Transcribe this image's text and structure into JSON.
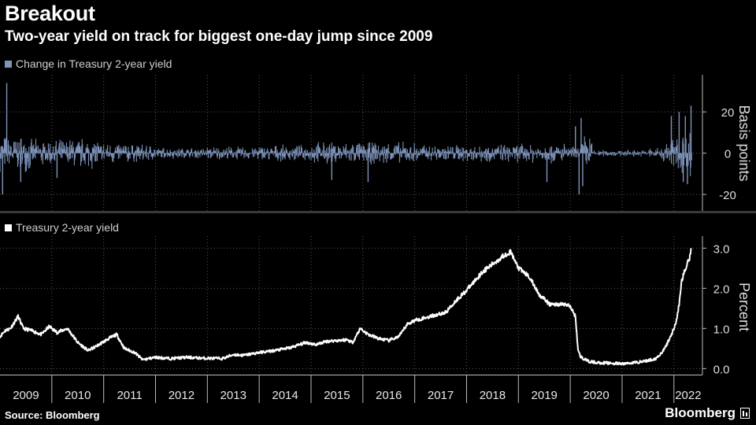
{
  "title": "Breakout",
  "subtitle": "Two-year yield on track for biggest one-day jump since 2009",
  "source": "Source: Bloomberg",
  "brand": "Bloomberg",
  "colors": {
    "bars": "#7e94bb",
    "line": "#ffffff",
    "background": "#000000",
    "grid": "#5a5a5a"
  },
  "chart_data": [
    {
      "type": "bar",
      "title": "Change in Treasury 2-year yield",
      "ylabel": "Basis points",
      "ylim": [
        -28,
        38
      ],
      "yticks": [
        -20,
        0,
        20
      ],
      "ytick_labels": [
        "-20",
        "0",
        "20"
      ],
      "x_range": [
        2009.0,
        2022.35
      ],
      "volatility_regimes": [
        {
          "start": 2009.0,
          "amp": 8
        },
        {
          "start": 2009.6,
          "amp": 6
        },
        {
          "start": 2010.3,
          "amp": 7
        },
        {
          "start": 2010.9,
          "amp": 5
        },
        {
          "start": 2011.5,
          "amp": 4
        },
        {
          "start": 2012.0,
          "amp": 2.5
        },
        {
          "start": 2013.0,
          "amp": 3
        },
        {
          "start": 2014.0,
          "amp": 3.5
        },
        {
          "start": 2015.0,
          "amp": 5
        },
        {
          "start": 2016.0,
          "amp": 5
        },
        {
          "start": 2017.0,
          "amp": 4
        },
        {
          "start": 2018.0,
          "amp": 4
        },
        {
          "start": 2019.0,
          "amp": 4.5
        },
        {
          "start": 2019.9,
          "amp": 3
        },
        {
          "start": 2020.2,
          "amp": 8
        },
        {
          "start": 2020.45,
          "amp": 1.5
        },
        {
          "start": 2021.5,
          "amp": 2.5
        },
        {
          "start": 2021.75,
          "amp": 5
        },
        {
          "start": 2021.95,
          "amp": 9
        },
        {
          "start": 2022.15,
          "amp": 11
        }
      ],
      "notable_moves": [
        {
          "x": 2009.13,
          "value": 34
        },
        {
          "x": 2009.05,
          "value": -20
        },
        {
          "x": 2009.4,
          "value": -14
        },
        {
          "x": 2010.1,
          "value": -12
        },
        {
          "x": 2015.4,
          "value": -13
        },
        {
          "x": 2016.1,
          "value": -14
        },
        {
          "x": 2019.55,
          "value": -14
        },
        {
          "x": 2020.1,
          "value": 13
        },
        {
          "x": 2020.17,
          "value": -20
        },
        {
          "x": 2020.21,
          "value": 17
        },
        {
          "x": 2020.24,
          "value": -16
        },
        {
          "x": 2021.95,
          "value": 18
        },
        {
          "x": 2022.1,
          "value": 20
        },
        {
          "x": 2022.18,
          "value": -14
        },
        {
          "x": 2022.22,
          "value": 18
        },
        {
          "x": 2022.26,
          "value": -15
        },
        {
          "x": 2022.33,
          "value": 23
        }
      ]
    },
    {
      "type": "line",
      "title": "Treasury 2-year yield",
      "ylabel": "Percent",
      "ylim": [
        -0.15,
        3.3
      ],
      "yticks": [
        0,
        1,
        2,
        3
      ],
      "ytick_labels": [
        "0.0",
        "1.0",
        "2.0",
        "3.0"
      ],
      "xticks": [
        "2009",
        "2010",
        "2011",
        "2012",
        "2013",
        "2014",
        "2015",
        "2016",
        "2017",
        "2018",
        "2019",
        "2020",
        "2021",
        "2022"
      ],
      "x": [
        2009.0,
        2009.1,
        2009.2,
        2009.35,
        2009.45,
        2009.6,
        2009.8,
        2009.95,
        2010.1,
        2010.3,
        2010.5,
        2010.7,
        2010.85,
        2011.1,
        2011.25,
        2011.4,
        2011.6,
        2011.75,
        2012.0,
        2012.3,
        2012.6,
        2012.9,
        2013.3,
        2013.5,
        2013.7,
        2014.0,
        2014.3,
        2014.6,
        2014.9,
        2015.1,
        2015.3,
        2015.5,
        2015.7,
        2015.8,
        2015.95,
        2016.1,
        2016.3,
        2016.5,
        2016.7,
        2016.85,
        2017.0,
        2017.3,
        2017.6,
        2017.8,
        2018.0,
        2018.3,
        2018.6,
        2018.75,
        2018.85,
        2019.0,
        2019.2,
        2019.4,
        2019.6,
        2019.75,
        2019.9,
        2020.0,
        2020.1,
        2020.15,
        2020.2,
        2020.25,
        2020.35,
        2020.5,
        2020.7,
        2021.0,
        2021.3,
        2021.5,
        2021.65,
        2021.8,
        2021.9,
        2022.0,
        2022.05,
        2022.1,
        2022.15,
        2022.2,
        2022.25,
        2022.3,
        2022.33
      ],
      "values": [
        0.8,
        0.95,
        1.0,
        1.3,
        1.0,
        0.95,
        0.85,
        1.05,
        0.9,
        1.0,
        0.65,
        0.45,
        0.55,
        0.75,
        0.85,
        0.5,
        0.4,
        0.22,
        0.28,
        0.25,
        0.28,
        0.26,
        0.25,
        0.35,
        0.33,
        0.4,
        0.45,
        0.52,
        0.65,
        0.6,
        0.68,
        0.7,
        0.72,
        0.65,
        1.0,
        0.85,
        0.75,
        0.7,
        0.8,
        1.1,
        1.2,
        1.3,
        1.4,
        1.7,
        1.95,
        2.4,
        2.7,
        2.85,
        2.9,
        2.5,
        2.3,
        1.85,
        1.6,
        1.6,
        1.6,
        1.55,
        1.3,
        0.45,
        0.3,
        0.25,
        0.18,
        0.15,
        0.14,
        0.12,
        0.16,
        0.2,
        0.25,
        0.45,
        0.7,
        1.0,
        1.2,
        1.6,
        2.2,
        2.4,
        2.6,
        2.75,
        3.0
      ]
    }
  ]
}
